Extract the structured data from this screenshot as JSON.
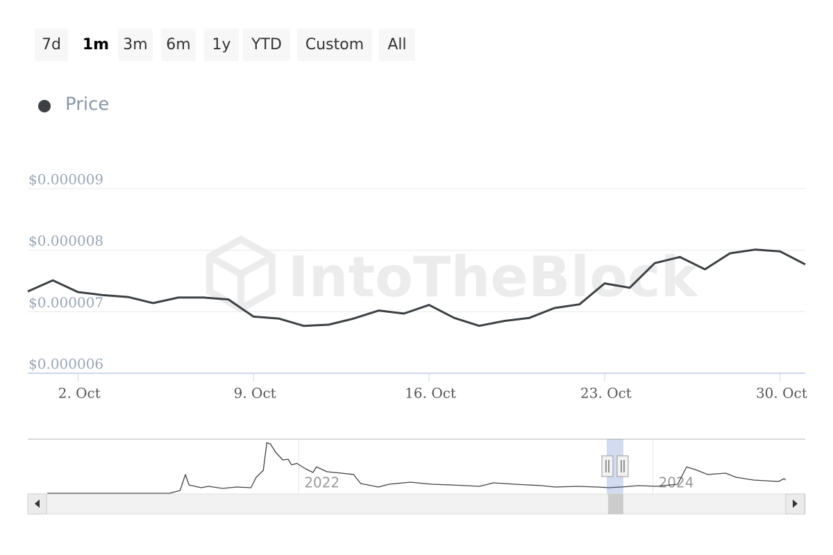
{
  "range_selector": {
    "buttons": [
      "7d",
      "1m",
      "3m",
      "6m",
      "1y",
      "YTD",
      "Custom",
      "All"
    ],
    "selected_index": 1
  },
  "watermark": "IntoTheBlock",
  "chart_data": [
    {
      "type": "line",
      "x": [
        0,
        1,
        2,
        3,
        4,
        5,
        6,
        7,
        8,
        9,
        10,
        11,
        12,
        13,
        14,
        15,
        16,
        17,
        18,
        19,
        20,
        21,
        22,
        23,
        24,
        25,
        26,
        27,
        28,
        29,
        30,
        31
      ],
      "series": [
        {
          "name": "Price",
          "color": "#3d4043",
          "values": [
            7.33e-06,
            7.51e-06,
            7.32e-06,
            7.27e-06,
            7.24e-06,
            7.14e-06,
            7.23e-06,
            7.23e-06,
            7.2e-06,
            6.92e-06,
            6.89e-06,
            6.77e-06,
            6.79e-06,
            6.89e-06,
            7.02e-06,
            6.97e-06,
            7.11e-06,
            6.9e-06,
            6.77e-06,
            6.85e-06,
            6.9e-06,
            7.06e-06,
            7.12e-06,
            7.46e-06,
            7.39e-06,
            7.79e-06,
            7.89e-06,
            7.69e-06,
            7.95e-06,
            8.01e-06,
            7.98e-06,
            7.77e-06
          ]
        }
      ],
      "xlim": [
        0,
        31
      ],
      "xticks": [
        {
          "value": 2,
          "label": "2. Oct"
        },
        {
          "value": 9,
          "label": "9. Oct"
        },
        {
          "value": 16,
          "label": "16. Oct"
        },
        {
          "value": 23,
          "label": "23. Oct"
        },
        {
          "value": 30,
          "label": "30. Oct"
        }
      ],
      "ylim": [
        6e-06,
        9e-06
      ],
      "yticks": [
        {
          "value": 6e-06,
          "label": "$0.000006"
        },
        {
          "value": 7e-06,
          "label": "$0.000007"
        },
        {
          "value": 8e-06,
          "label": "$0.000008"
        },
        {
          "value": 9e-06,
          "label": "$0.000009"
        }
      ],
      "grid": true
    },
    {
      "type": "line",
      "x": [
        2020.58,
        2021.27,
        2021.33,
        2021.36,
        2021.38,
        2021.45,
        2021.49,
        2021.57,
        2021.65,
        2021.73,
        2021.76,
        2021.8,
        2021.82,
        2021.84,
        2021.87,
        2021.91,
        2021.94,
        2021.96,
        2021.99,
        2022.04,
        2022.08,
        2022.1,
        2022.16,
        2022.24,
        2022.31,
        2022.35,
        2022.45,
        2022.51,
        2022.63,
        2022.75,
        2022.86,
        2023.02,
        2023.1,
        2023.22,
        2023.37,
        2023.45,
        2023.57,
        2023.69,
        2023.75,
        2023.82,
        2023.92,
        2024.02,
        2024.14,
        2024.19,
        2024.24,
        2024.31,
        2024.41,
        2024.47,
        2024.57,
        2024.71,
        2024.74,
        2024.75
      ],
      "values": [
        3.4e-07,
        3.4e-07,
        1.71e-06,
        9.57e-06,
        4.44e-06,
        3.08e-06,
        3.76e-06,
        2.73e-06,
        3.42e-06,
        3.08e-06,
        8.2e-06,
        1.162e-05,
        2.529e-05,
        2.461e-05,
        2.051e-05,
        1.675e-05,
        1.709e-05,
        1.436e-05,
        1.504e-05,
        1.23e-05,
        1.06e-05,
        1.333e-05,
        1.094e-05,
        1.025e-05,
        9.57e-06,
        5.13e-06,
        3.42e-06,
        4.79e-06,
        5.81e-06,
        4.79e-06,
        4.44e-06,
        3.76e-06,
        5.47e-06,
        4.79e-06,
        4.1e-06,
        3.42e-06,
        3.76e-06,
        3.42e-06,
        3.08e-06,
        3.42e-06,
        4.1e-06,
        3.76e-06,
        4.79e-06,
        1.333e-05,
        1.196e-05,
        9.57e-06,
        1.025e-05,
        8.2e-06,
        6.84e-06,
        6.15e-06,
        7.52e-06,
        6.84e-06
      ],
      "color": "#3d4043",
      "xlim": [
        2020.47,
        2024.86
      ],
      "xticks": [
        {
          "value": 2022,
          "label": "2022"
        },
        {
          "value": 2024,
          "label": "2024"
        }
      ],
      "ylim": [
        0,
        2.7e-05
      ],
      "grid": true
    }
  ]
}
